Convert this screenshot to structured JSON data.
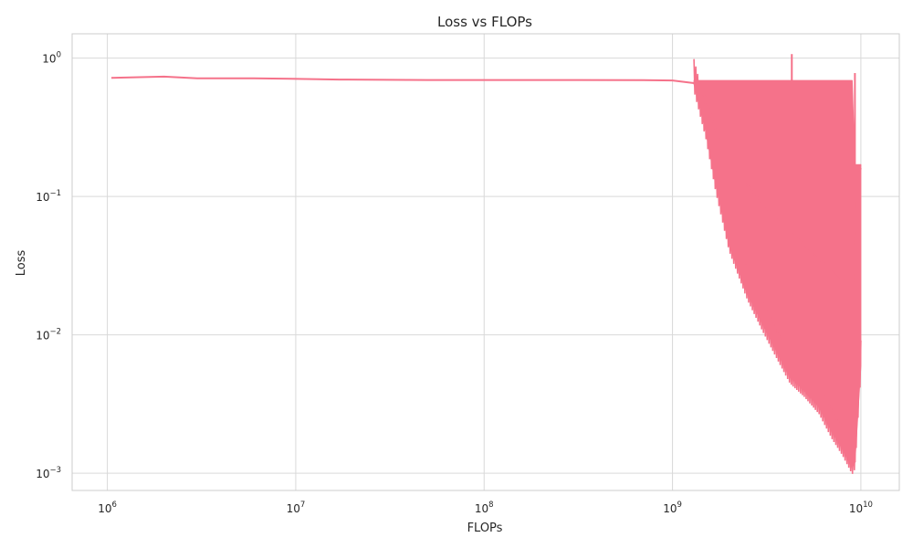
{
  "chart_data": {
    "type": "line",
    "title": "Loss vs FLOPs",
    "xlabel": "FLOPs",
    "ylabel": "Loss",
    "xscale": "log",
    "yscale": "log",
    "xlim": [
      650000,
      16000000000
    ],
    "ylim": [
      0.00075,
      1.5
    ],
    "grid": true,
    "line_color": "#f5728a",
    "x_ticks": [
      {
        "value": 1000000,
        "base": "10",
        "exp": "6"
      },
      {
        "value": 10000000,
        "base": "10",
        "exp": "7"
      },
      {
        "value": 100000000,
        "base": "10",
        "exp": "8"
      },
      {
        "value": 1000000000,
        "base": "10",
        "exp": "9"
      },
      {
        "value": 10000000000,
        "base": "10",
        "exp": "10"
      }
    ],
    "y_ticks": [
      {
        "value": 1,
        "base": "10",
        "exp": "0"
      },
      {
        "value": 0.1,
        "base": "10",
        "exp": "−1"
      },
      {
        "value": 0.01,
        "base": "10",
        "exp": "−2"
      },
      {
        "value": 0.001,
        "base": "10",
        "exp": "−3"
      }
    ],
    "series": [
      {
        "x": [
          1050000,
          2000000,
          3000000,
          5300000,
          6000000,
          9500000,
          17000000,
          50000000,
          200000000,
          700000000,
          1000000000,
          1300000000,
          1500000000,
          1700000000,
          2000000000,
          2500000000,
          3000000000,
          3500000000,
          4200000000,
          5000000000,
          6000000000,
          7000000000,
          8000000000,
          9000000000,
          9300000000,
          9800000000,
          10000000000
        ],
        "y": [
          0.72,
          0.735,
          0.715,
          0.715,
          0.715,
          0.71,
          0.7,
          0.695,
          0.695,
          0.693,
          0.69,
          0.66,
          0.52,
          0.3,
          0.17,
          0.12,
          0.09,
          0.07,
          0.055,
          0.045,
          0.035,
          0.03,
          0.025,
          0.02,
          0.05,
          0.15,
          0.16
        ]
      }
    ],
    "band": {
      "x": [
        1300000000,
        1500000000,
        1700000000,
        2000000000,
        2500000000,
        3000000000,
        3500000000,
        4200000000,
        5000000000,
        6000000000,
        7000000000,
        8000000000,
        9000000000,
        9300000000,
        10000000000
      ],
      "upper": [
        0.69,
        0.69,
        0.69,
        0.69,
        0.69,
        0.69,
        0.69,
        0.69,
        0.69,
        0.69,
        0.69,
        0.69,
        0.69,
        0.17,
        0.17
      ],
      "lower": [
        0.65,
        0.3,
        0.12,
        0.045,
        0.02,
        0.012,
        0.008,
        0.005,
        0.004,
        0.003,
        0.002,
        0.0015,
        0.0011,
        0.0012,
        0.006
      ]
    },
    "spikes": [
      {
        "x": 4300000000,
        "top": 1.07,
        "bottom": 0.69
      },
      {
        "x": 9300000000,
        "top": 0.78,
        "bottom": 0.0012
      }
    ]
  }
}
